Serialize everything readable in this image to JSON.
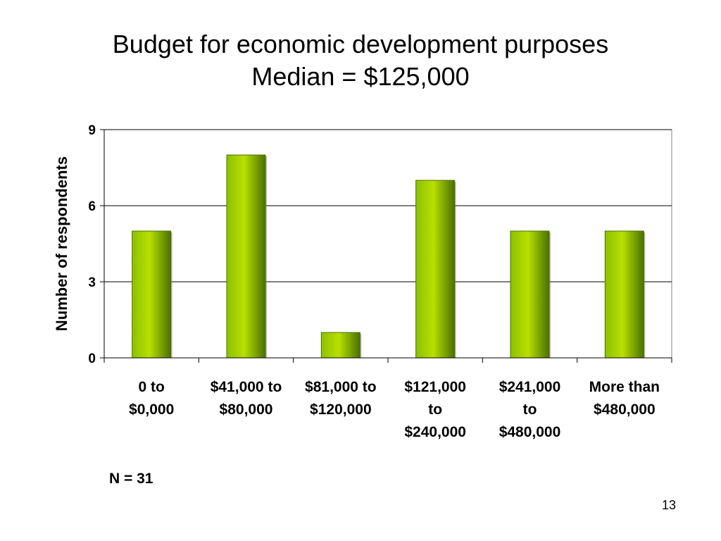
{
  "slide": {
    "title_line1": "Budget for economic development purposes",
    "title_line2": "Median = $125,000",
    "note": "N = 31",
    "page_number": "13"
  },
  "colors": {
    "bar_light": "#b8e000",
    "bar_mid": "#8cc000",
    "bar_dark": "#4a7000",
    "grid": "#000000"
  },
  "chart_data": {
    "type": "bar",
    "categories": [
      [
        "0 to",
        "$0,000"
      ],
      [
        "$41,000 to",
        "$80,000"
      ],
      [
        "$81,000 to",
        "$120,000"
      ],
      [
        "$121,000",
        "to",
        "$240,000"
      ],
      [
        "$241,000",
        "to",
        "$480,000"
      ],
      [
        "More than",
        "$480,000"
      ]
    ],
    "values": [
      5,
      8,
      1,
      7,
      5,
      5
    ],
    "ylabel": "Number of respondents",
    "xlabel": "",
    "ylim": [
      0,
      9
    ],
    "yticks": [
      0,
      3,
      6,
      9
    ],
    "grid": true,
    "legend": false
  }
}
